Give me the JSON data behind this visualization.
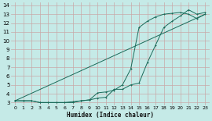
{
  "xlabel": "Humidex (Indice chaleur)",
  "ylabel": "",
  "bg_color": "#c5eae7",
  "grid_color": "#c8a8a8",
  "line_color": "#1a6b5a",
  "xlim": [
    -0.5,
    23.5
  ],
  "ylim": [
    2.7,
    14.3
  ],
  "xticks": [
    0,
    1,
    2,
    3,
    4,
    5,
    6,
    7,
    8,
    9,
    10,
    11,
    12,
    13,
    14,
    15,
    16,
    17,
    18,
    19,
    20,
    21,
    22,
    23
  ],
  "yticks": [
    3,
    4,
    5,
    6,
    7,
    8,
    9,
    10,
    11,
    12,
    13,
    14
  ],
  "line1_x": [
    0,
    1,
    2,
    3,
    4,
    5,
    6,
    7,
    8,
    9,
    10,
    11,
    12,
    13,
    14,
    15,
    16,
    17,
    18,
    19,
    20,
    21,
    22,
    23
  ],
  "line1_y": [
    3.2,
    3.2,
    3.2,
    3.0,
    3.0,
    3.0,
    3.0,
    3.1,
    3.2,
    3.3,
    3.5,
    3.6,
    4.5,
    4.5,
    5.0,
    5.2,
    7.5,
    9.5,
    11.5,
    12.2,
    12.8,
    13.5,
    13.0,
    13.2
  ],
  "line2_x": [
    0,
    1,
    2,
    3,
    4,
    5,
    6,
    7,
    8,
    9,
    10,
    11,
    12,
    13,
    14,
    15,
    16,
    17,
    18,
    19,
    20,
    21,
    22,
    23
  ],
  "line2_y": [
    3.2,
    3.2,
    3.2,
    3.0,
    3.0,
    3.0,
    3.0,
    3.0,
    3.2,
    3.3,
    4.1,
    4.2,
    4.4,
    5.0,
    6.8,
    11.5,
    12.2,
    12.7,
    13.0,
    13.1,
    13.2,
    13.0,
    12.5,
    13.0
  ],
  "line3_x": [
    0,
    23
  ],
  "line3_y": [
    3.2,
    13.0
  ]
}
